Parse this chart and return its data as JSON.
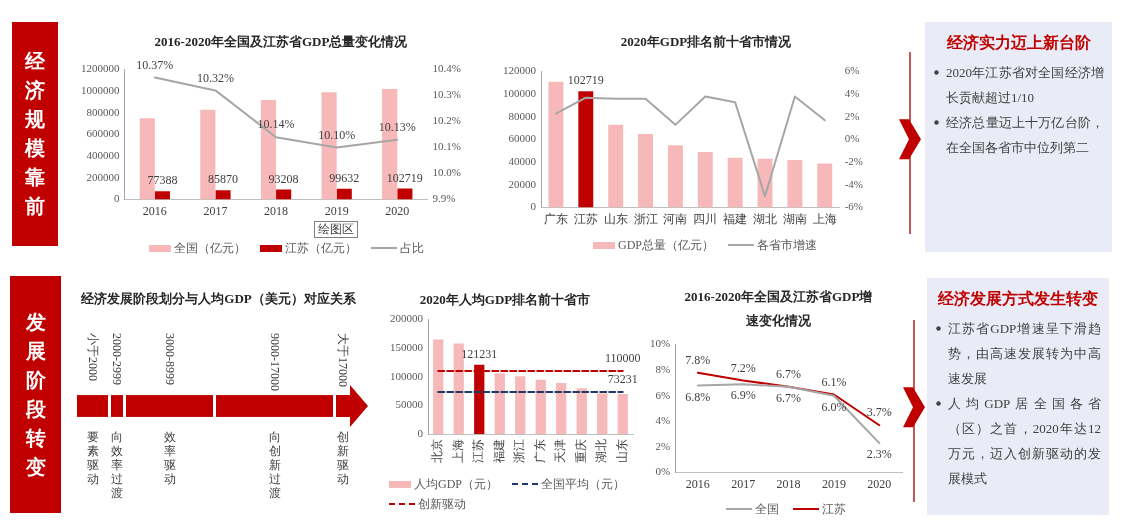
{
  "chart_data": [
    {
      "type": "other",
      "title": "经济规模靠前"
    },
    {
      "type": "bar",
      "title": "2016-2020年全国及江苏省GDP总量变化情况",
      "categories": [
        "2016",
        "2017",
        "2018",
        "2019",
        "2020"
      ],
      "series": [
        {
          "name": "全国（亿元）",
          "color": "#f6b8b9",
          "values": [
            750000,
            830000,
            920000,
            990000,
            1020000
          ]
        },
        {
          "name": "江苏（亿元）",
          "color": "#c00000",
          "values": [
            77388,
            85870,
            93208,
            99632,
            102719
          ],
          "value_labels": [
            "77388",
            "85870",
            "93208",
            "99632",
            "102719"
          ]
        },
        {
          "name": "占比",
          "type": "line",
          "axis": "y2",
          "color": "#a6a6a6",
          "values": [
            10.37,
            10.32,
            10.14,
            10.1,
            10.13
          ],
          "value_labels": [
            "10.37%",
            "10.32%",
            "10.14%",
            "10.10%",
            "10.13%"
          ]
        }
      ],
      "ylim": [
        0,
        1200000
      ],
      "yticks": [
        0,
        200000,
        400000,
        600000,
        800000,
        1000000,
        1200000
      ],
      "y2lim": [
        9.9,
        10.4
      ],
      "y2ticks": [
        {
          "value": 9.9,
          "label": "9.9%"
        },
        {
          "value": 10.0,
          "label": "10.0%"
        },
        {
          "value": 10.1,
          "label": "10.1%"
        },
        {
          "value": 10.2,
          "label": "10.2%"
        },
        {
          "value": 10.3,
          "label": "10.3%"
        },
        {
          "value": 10.4,
          "label": "10.4%"
        }
      ],
      "legend": "bottom",
      "marker": "none",
      "annotations": [
        "绘图区"
      ]
    },
    {
      "type": "bar",
      "title": "2020年GDP排名前十省市情况",
      "categories": [
        "广东",
        "江苏",
        "山东",
        "浙江",
        "河南",
        "四川",
        "福建",
        "湖北",
        "湖南",
        "上海"
      ],
      "series": [
        {
          "name": "GDP总量（亿元）",
          "color": "#f6b8b9",
          "colors": [
            "#f6b8b9",
            "#c00000",
            "#f6b8b9",
            "#f6b8b9",
            "#f6b8b9",
            "#f6b8b9",
            "#f6b8b9",
            "#f6b8b9",
            "#f6b8b9",
            "#f6b8b9"
          ],
          "values": [
            111000,
            102719,
            73000,
            65000,
            55000,
            49000,
            44000,
            43000,
            42000,
            39000
          ],
          "value_labels": [
            null,
            "102719",
            null,
            null,
            null,
            null,
            null,
            null,
            null,
            null
          ]
        },
        {
          "name": "各省市增速",
          "type": "line",
          "axis": "y2",
          "color": "#a6a6a6",
          "values": [
            2.3,
            3.7,
            3.6,
            3.6,
            1.3,
            3.8,
            3.3,
            -5.0,
            3.8,
            1.7
          ]
        }
      ],
      "ylim": [
        0,
        120000
      ],
      "yticks": [
        0,
        20000,
        40000,
        60000,
        80000,
        100000,
        120000
      ],
      "y2lim": [
        -6,
        6
      ],
      "y2ticks": [
        {
          "value": -6,
          "label": "-6%"
        },
        {
          "value": -4,
          "label": "-4%"
        },
        {
          "value": -2,
          "label": "-2%"
        },
        {
          "value": 0,
          "label": "0%"
        },
        {
          "value": 2,
          "label": "2%"
        },
        {
          "value": 4,
          "label": "4%"
        },
        {
          "value": 6,
          "label": "6%"
        }
      ],
      "legend": "bottom",
      "marker": "none"
    },
    {
      "type": "other",
      "title": "经济实力迈上新台阶",
      "annotations": [
        "2020年江苏省对全国经济增长贡献超过1/10",
        "经济总量迈上十万亿台阶，在全国各省市中位列第二"
      ]
    },
    {
      "type": "other",
      "title": "发展阶段转变"
    },
    {
      "type": "other",
      "title": "经济发展阶段划分与人均GDP（美元）对应关系",
      "categories": [
        "小于2000",
        "2000-2999",
        "3000-8999",
        "9000-17000",
        "大于17000"
      ],
      "annotations": [
        "要素驱动",
        "向效率过渡",
        "效率驱动",
        "向创新过渡",
        "创新驱动"
      ]
    },
    {
      "type": "bar",
      "title": "2020年人均GDP排名前十省市",
      "categories": [
        "北京",
        "上海",
        "江苏",
        "福建",
        "浙江",
        "广东",
        "天津",
        "重庆",
        "湖北",
        "山东"
      ],
      "series": [
        {
          "name": "人均GDP（元）",
          "color": "#f6b8b9",
          "colors": [
            "#f6b8b9",
            "#f6b8b9",
            "#c00000",
            "#f6b8b9",
            "#f6b8b9",
            "#f6b8b9",
            "#f6b8b9",
            "#f6b8b9",
            "#f6b8b9",
            "#f6b8b9"
          ],
          "values": [
            165000,
            158000,
            121231,
            106000,
            101000,
            95000,
            89000,
            80000,
            71000,
            70000
          ],
          "value_labels": [
            null,
            null,
            "121231",
            null,
            null,
            null,
            null,
            null,
            null,
            null
          ]
        },
        {
          "name": "全国平均（元）",
          "type": "line",
          "color": "#1f3864",
          "line_style": "dashed",
          "values": [
            73231,
            73231,
            73231,
            73231,
            73231,
            73231,
            73231,
            73231,
            73231,
            73231
          ],
          "value_labels": [
            null,
            null,
            null,
            null,
            null,
            null,
            null,
            null,
            null,
            "73231"
          ]
        },
        {
          "name": "创新驱动",
          "type": "line",
          "color": "#c00000",
          "line_style": "dashed",
          "values": [
            110000,
            110000,
            110000,
            110000,
            110000,
            110000,
            110000,
            110000,
            110000,
            110000
          ],
          "value_labels": [
            null,
            null,
            null,
            null,
            null,
            null,
            null,
            null,
            null,
            "110000"
          ]
        }
      ],
      "ylim": [
        0,
        200000
      ],
      "yticks": [
        0,
        50000,
        100000,
        150000,
        200000
      ],
      "legend": "bottom",
      "marker": "none"
    },
    {
      "type": "line",
      "title": "2016-2020年全国及江苏省GDP增速变化情况",
      "categories": [
        "2016",
        "2017",
        "2018",
        "2019",
        "2020"
      ],
      "series": [
        {
          "name": "全国",
          "color": "#a6a6a6",
          "values": [
            6.8,
            6.9,
            6.7,
            6.0,
            2.3
          ],
          "value_labels": [
            "6.8%",
            "6.9%",
            "6.7%",
            "6.0%",
            "2.3%"
          ]
        },
        {
          "name": "江苏",
          "color": "#c00000",
          "values": [
            7.8,
            7.2,
            6.7,
            6.1,
            3.7
          ],
          "value_labels": [
            "7.8%",
            "7.2%",
            "6.7%",
            "6.1%",
            "3.7%"
          ]
        }
      ],
      "ylim": [
        0,
        10
      ],
      "yticks": [
        {
          "value": 0,
          "label": "0%"
        },
        {
          "value": 2,
          "label": "2%"
        },
        {
          "value": 4,
          "label": "4%"
        },
        {
          "value": 6,
          "label": "6%"
        },
        {
          "value": 8,
          "label": "8%"
        },
        {
          "value": 10,
          "label": "10%"
        }
      ],
      "legend": "bottom",
      "marker": "none"
    },
    {
      "type": "other",
      "title": "经济发展方式发生转变",
      "annotations": [
        "江苏省GDP增速呈下滑趋势，由高速发展转为中高速发展",
        "人均GDP居全国各省（区）之首，2020年达12万元，迈入创新驱动的发展模式"
      ]
    }
  ]
}
